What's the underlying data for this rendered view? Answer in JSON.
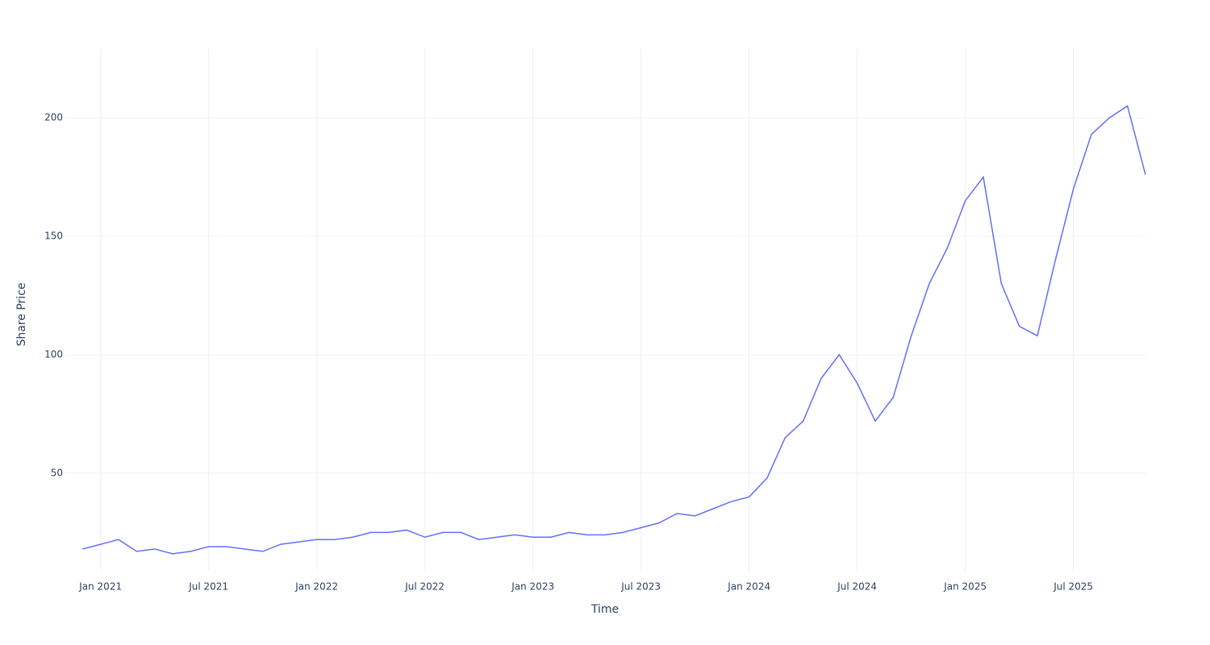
{
  "chart_data": {
    "type": "line",
    "x_label": "Time",
    "y_label": "Share Price",
    "grid": true,
    "x": [
      "2020-12",
      "2021-01",
      "2021-02",
      "2021-03",
      "2021-04",
      "2021-05",
      "2021-06",
      "2021-07",
      "2021-08",
      "2021-09",
      "2021-10",
      "2021-11",
      "2021-12",
      "2022-01",
      "2022-02",
      "2022-03",
      "2022-04",
      "2022-05",
      "2022-06",
      "2022-07",
      "2022-08",
      "2022-09",
      "2022-10",
      "2022-11",
      "2022-12",
      "2023-01",
      "2023-02",
      "2023-03",
      "2023-04",
      "2023-05",
      "2023-06",
      "2023-07",
      "2023-08",
      "2023-09",
      "2023-10",
      "2023-11",
      "2023-12",
      "2024-01",
      "2024-02",
      "2024-03",
      "2024-04",
      "2024-05",
      "2024-06",
      "2024-07",
      "2024-08",
      "2024-09",
      "2024-10",
      "2024-11",
      "2024-12",
      "2025-01",
      "2025-02",
      "2025-03",
      "2025-04",
      "2025-05",
      "2025-06",
      "2025-07",
      "2025-08",
      "2025-09",
      "2025-10",
      "2025-11"
    ],
    "series": [
      {
        "name": "Share Price",
        "color": "#636efa",
        "values": [
          18,
          20,
          22,
          17,
          18,
          16,
          17,
          19,
          19,
          18,
          17,
          20,
          21,
          22,
          22,
          23,
          25,
          25,
          26,
          23,
          25,
          25,
          22,
          23,
          24,
          23,
          23,
          25,
          24,
          24,
          25,
          27,
          29,
          33,
          32,
          35,
          38,
          40,
          48,
          65,
          72,
          90,
          100,
          88,
          72,
          82,
          108,
          130,
          145,
          165,
          175,
          130,
          112,
          108,
          140,
          170,
          193,
          200,
          205,
          176
        ]
      }
    ],
    "xlim": [
      "2020-11",
      "2025-11"
    ],
    "xticks": [
      {
        "value": "2021-01",
        "label": "Jan 2021"
      },
      {
        "value": "2021-07",
        "label": "Jul 2021"
      },
      {
        "value": "2022-01",
        "label": "Jan 2022"
      },
      {
        "value": "2022-07",
        "label": "Jul 2022"
      },
      {
        "value": "2023-01",
        "label": "Jan 2023"
      },
      {
        "value": "2023-07",
        "label": "Jul 2023"
      },
      {
        "value": "2024-01",
        "label": "Jan 2024"
      },
      {
        "value": "2024-07",
        "label": "Jul 2024"
      },
      {
        "value": "2025-01",
        "label": "Jan 2025"
      },
      {
        "value": "2025-07",
        "label": "Jul 2025"
      }
    ],
    "ylim": [
      8.8,
      229.3
    ],
    "yticks": [
      50,
      100,
      150,
      200
    ]
  }
}
